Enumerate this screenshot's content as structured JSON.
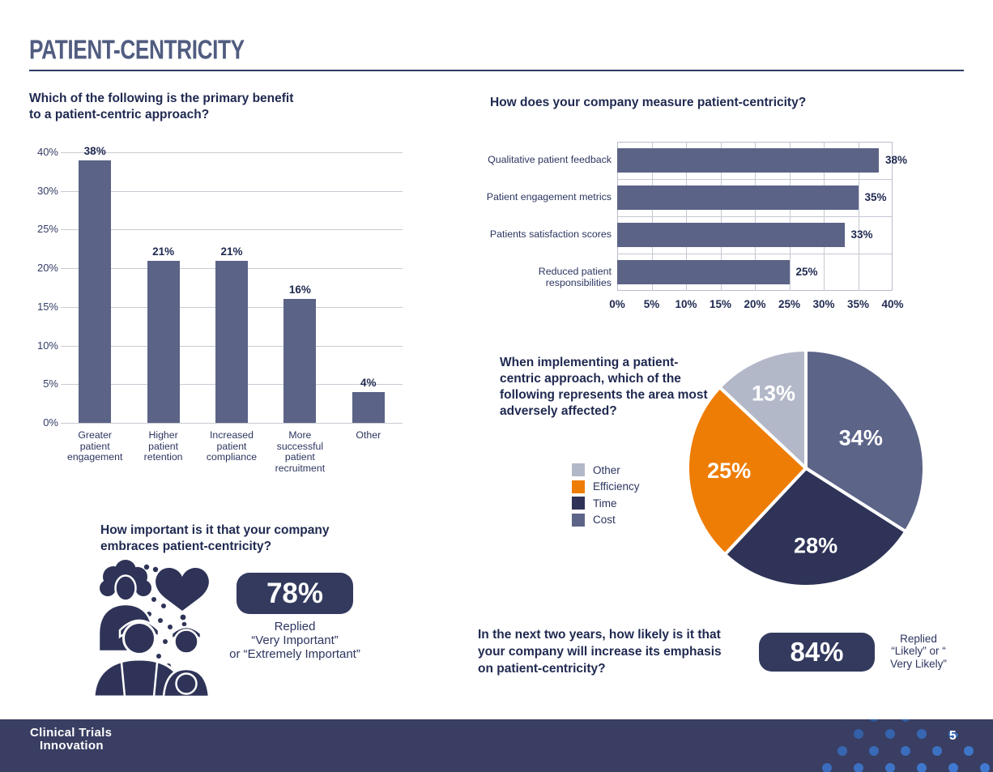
{
  "page": {
    "title": "PATIENT-CENTRICITY",
    "page_number": "5",
    "footer": {
      "logo_line1": "Clinical Trials",
      "logo_line2": "Innovation"
    }
  },
  "colors": {
    "bar_slate": "#5b6386",
    "navy_dark": "#2e3357",
    "orange": "#ee7d05",
    "light_slice": "#b3b8c9",
    "cost_slate": "#5c6488",
    "heading_navy": "#1f2950",
    "badge_bg": "#333a5e",
    "footer_bg": "#393e62",
    "ring_dark": "#27477e",
    "ring_bright": "#4079cf",
    "grid_light": "#c9cbd4"
  },
  "chart_data": [
    {
      "id": "primary-benefit",
      "type": "bar",
      "orientation": "vertical",
      "title": "Which of the following is the primary benefit\nto a patient-centric approach?",
      "categories": [
        "Greater\npatient\nengagement",
        "Higher\npatient\nretention",
        "Increased\npatient\ncompliance",
        "More\nsuccessful\npatient\nrecruitment",
        "Other"
      ],
      "values": [
        38,
        21,
        21,
        16,
        4
      ],
      "value_labels": [
        "38%",
        "21%",
        "21%",
        "16%",
        "4%"
      ],
      "y_ticks": [
        "40%",
        "30%",
        "25%",
        "20%",
        "15%",
        "10%",
        "5%",
        "0%"
      ],
      "y_tick_values": [
        40,
        30,
        25,
        20,
        15,
        10,
        5,
        0
      ],
      "grid": true,
      "legend": "none"
    },
    {
      "id": "measurement",
      "type": "bar",
      "orientation": "horizontal",
      "title": "How does your company measure patient-centricity?",
      "categories": [
        "Qualitative patient feedback",
        "Patient engagement metrics",
        "Patients satisfaction scores",
        "Reduced patient responsibilities"
      ],
      "values": [
        38,
        35,
        33,
        25
      ],
      "value_labels": [
        "38%",
        "35%",
        "33%",
        "25%"
      ],
      "x_ticks": [
        "0%",
        "5%",
        "10%",
        "15%",
        "20%",
        "25%",
        "30%",
        "35%",
        "40%"
      ],
      "xlim": [
        0,
        40
      ],
      "grid": true,
      "legend": "none"
    },
    {
      "id": "adversely-affected",
      "type": "pie",
      "title": "When implementing a patient-\ncentric approach, which of the\nfollowing represents the area most\nadversely affected?",
      "slices": [
        {
          "label": "Cost",
          "value": 34,
          "display": "34%",
          "color": "#5c6488",
          "label_r": 0.53
        },
        {
          "label": "Time",
          "value": 28,
          "display": "28%",
          "color": "#2e3357",
          "label_r": 0.66
        },
        {
          "label": "Efficiency",
          "value": 25,
          "display": "25%",
          "color": "#ee7d05",
          "label_r": 0.65
        },
        {
          "label": "Other",
          "value": 13,
          "display": "13%",
          "color": "#b3b8c9",
          "label_r": 0.69
        }
      ],
      "legend_order": [
        "Other",
        "Efficiency",
        "Time",
        "Cost"
      ],
      "legend_position": "left",
      "start_angle_deg": 0,
      "direction": "clockwise"
    }
  ],
  "stats": {
    "importance": {
      "question": "How important is it that your company\nembraces patient-centricity?",
      "value": "78%",
      "caption": "Replied\n“Very Important”\nor “Extremely Important”",
      "icon": "people-heart-icon"
    },
    "outlook": {
      "question": "In the next two years, how likely is it that\nyour company will increase its emphasis\non patient-centricity?",
      "value": "84%",
      "caption": "Replied\n“Likely” or “\nVery Likely”"
    }
  }
}
